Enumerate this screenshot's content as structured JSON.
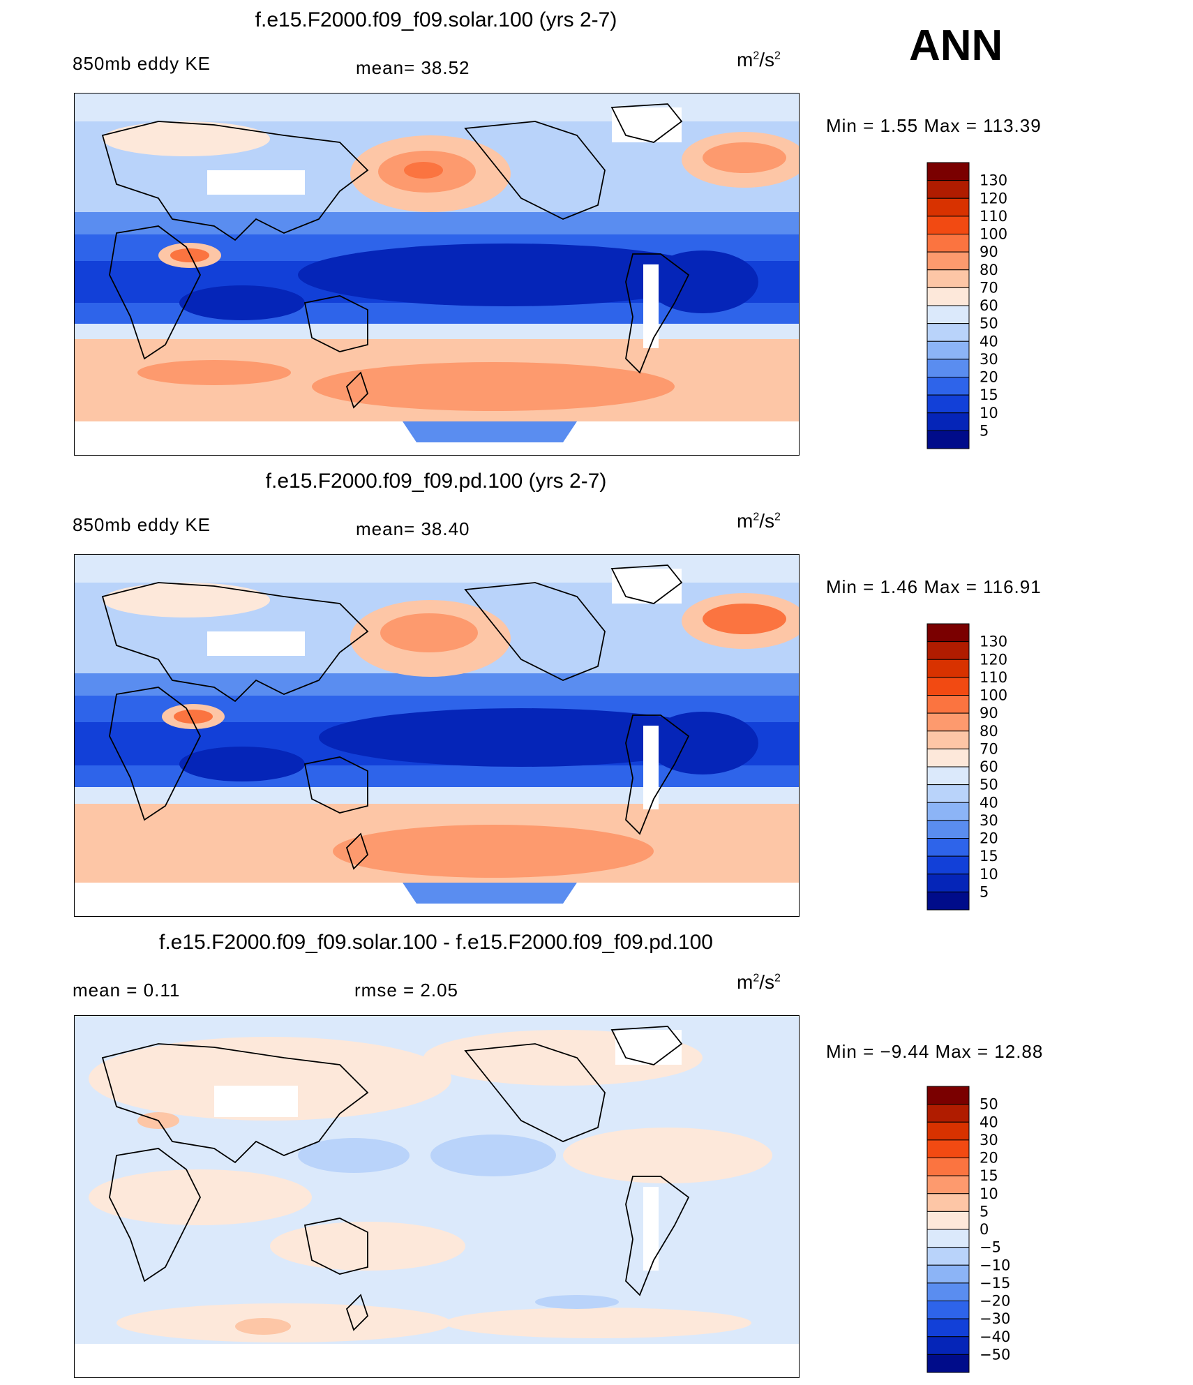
{
  "season": "ANN",
  "unit": {
    "base": "m",
    "exp1": "2",
    "sep": "/s",
    "exp2": "2"
  },
  "panels": [
    {
      "title": "f.e15.F2000.f09_f09.solar.100 (yrs 2-7)",
      "left_label": "850mb  eddy  KE",
      "stat1": "mean=   38.52",
      "stat2": "",
      "minmax": "Min  =     1.55  Max  =  113.39"
    },
    {
      "title": "f.e15.F2000.f09_f09.pd.100 (yrs 2-7)",
      "left_label": "850mb  eddy  KE",
      "stat1": "mean=   38.40",
      "stat2": "",
      "minmax": "Min  =     1.46  Max  =  116.91"
    },
    {
      "title": "f.e15.F2000.f09_f09.solar.100 - f.e15.F2000.f09_f09.pd.100",
      "left_label": "mean  =     0.11",
      "stat1": "",
      "stat2": "rmse  =     2.05",
      "minmax": "Min  =    −9.44  Max  =    12.88"
    }
  ],
  "colorbars": {
    "ke": {
      "labels": [
        "130",
        "120",
        "110",
        "100",
        "90",
        "80",
        "70",
        "60",
        "50",
        "40",
        "30",
        "20",
        "15",
        "10",
        "5"
      ],
      "colors": [
        "#7a0000",
        "#b01c00",
        "#d83200",
        "#f24a12",
        "#fb7440",
        "#fd9a6e",
        "#fdc6a6",
        "#fde8da",
        "#dbe9fb",
        "#b9d3fa",
        "#8cb4f6",
        "#5a8df0",
        "#2e64ea",
        "#1240d8",
        "#0525b8",
        "#000c8a"
      ]
    },
    "diff": {
      "labels": [
        "50",
        "40",
        "30",
        "20",
        "15",
        "10",
        "5",
        "0",
        "−5",
        "−10",
        "−15",
        "−20",
        "−30",
        "−40",
        "−50"
      ],
      "colors": [
        "#7a0000",
        "#b01c00",
        "#d83200",
        "#f24a12",
        "#fb7440",
        "#fd9a6e",
        "#fdc6a6",
        "#fde8da",
        "#dbe9fb",
        "#b9d3fa",
        "#8cb4f6",
        "#5a8df0",
        "#2e64ea",
        "#1240d8",
        "#0525b8",
        "#000c8a"
      ]
    }
  },
  "chart_data": [
    {
      "type": "heatmap",
      "title": "f.e15.F2000.f09_f09.solar.100 (yrs 2-7)",
      "variable": "850mb eddy KE",
      "units": "m^2/s^2",
      "mean": 38.52,
      "min": 1.55,
      "max": 113.39,
      "levels": [
        5,
        10,
        15,
        20,
        30,
        40,
        50,
        60,
        70,
        80,
        90,
        100,
        110,
        120,
        130
      ],
      "projection": "cylindrical equidistant, centered 180",
      "lon_range": [
        0,
        360
      ],
      "lat_range": [
        -90,
        90
      ]
    },
    {
      "type": "heatmap",
      "title": "f.e15.F2000.f09_f09.pd.100 (yrs 2-7)",
      "variable": "850mb eddy KE",
      "units": "m^2/s^2",
      "mean": 38.4,
      "min": 1.46,
      "max": 116.91,
      "levels": [
        5,
        10,
        15,
        20,
        30,
        40,
        50,
        60,
        70,
        80,
        90,
        100,
        110,
        120,
        130
      ],
      "projection": "cylindrical equidistant, centered 180",
      "lon_range": [
        0,
        360
      ],
      "lat_range": [
        -90,
        90
      ]
    },
    {
      "type": "heatmap",
      "title": "f.e15.F2000.f09_f09.solar.100 - f.e15.F2000.f09_f09.pd.100",
      "variable": "850mb eddy KE difference",
      "units": "m^2/s^2",
      "mean": 0.11,
      "rmse": 2.05,
      "min": -9.44,
      "max": 12.88,
      "levels": [
        -50,
        -40,
        -30,
        -20,
        -15,
        -10,
        -5,
        0,
        5,
        10,
        15,
        20,
        30,
        40,
        50
      ],
      "projection": "cylindrical equidistant, centered 180",
      "lon_range": [
        0,
        360
      ],
      "lat_range": [
        -90,
        90
      ]
    }
  ]
}
